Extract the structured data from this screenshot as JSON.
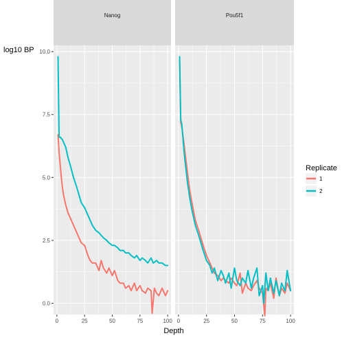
{
  "chart_data": {
    "type": "line",
    "panels": [
      "Nanog",
      "Pou5f1"
    ],
    "xlabel": "Depth",
    "ylabel": "log10 BP",
    "xlim": [
      -3,
      103
    ],
    "ylim": [
      -0.45,
      10.25
    ],
    "x_ticks": [
      0,
      25,
      50,
      75,
      100
    ],
    "x_tick_labels": [
      "0",
      "25",
      "50",
      "75",
      "100"
    ],
    "y_ticks": [
      0,
      2.5,
      5,
      7.5,
      10
    ],
    "y_tick_labels": [
      "0.0",
      "2.5",
      "5.0",
      "7.5",
      "10.0"
    ],
    "legend": {
      "title": "Replicate",
      "position": "right",
      "entries": [
        "1",
        "2"
      ]
    },
    "colors": {
      "1": "#f8766d",
      "2": "#00bfc4",
      "panel_bg": "#ebebeb",
      "strip_bg": "#d9d9d9"
    },
    "grid": true,
    "series": {
      "Nanog": {
        "1": {
          "x": [
            1,
            2,
            3,
            4,
            5,
            6,
            8,
            10,
            12,
            15,
            18,
            20,
            22,
            25,
            28,
            30,
            32,
            35,
            38,
            40,
            42,
            45,
            47,
            50,
            52,
            55,
            57,
            60,
            62,
            65,
            67,
            70,
            72,
            75,
            77,
            80,
            82,
            85,
            86,
            88,
            90,
            92,
            95,
            98,
            100
          ],
          "y": [
            6.7,
            6.0,
            5.5,
            5.0,
            4.6,
            4.3,
            3.9,
            3.6,
            3.4,
            3.1,
            2.8,
            2.6,
            2.4,
            2.3,
            1.9,
            1.7,
            1.6,
            1.6,
            1.3,
            1.7,
            1.4,
            1.2,
            1.4,
            1.1,
            1.3,
            0.9,
            0.8,
            0.8,
            0.6,
            0.7,
            0.5,
            0.8,
            0.5,
            0.7,
            0.5,
            0.4,
            0.6,
            0.5,
            -0.4,
            0.6,
            0.4,
            0.3,
            0.6,
            0.3,
            0.5
          ]
        },
        "2": {
          "x": [
            1,
            2,
            3,
            5,
            8,
            10,
            12,
            15,
            18,
            20,
            22,
            25,
            28,
            30,
            32,
            35,
            38,
            40,
            42,
            45,
            47,
            50,
            52,
            55,
            57,
            60,
            62,
            65,
            67,
            70,
            72,
            75,
            77,
            80,
            82,
            85,
            87,
            90,
            92,
            95,
            98,
            100
          ],
          "y": [
            9.8,
            6.6,
            6.6,
            6.5,
            6.2,
            5.8,
            5.5,
            5.0,
            4.6,
            4.3,
            4.0,
            3.8,
            3.5,
            3.3,
            3.1,
            2.9,
            2.8,
            2.7,
            2.6,
            2.5,
            2.4,
            2.3,
            2.3,
            2.2,
            2.1,
            2.1,
            2.0,
            2.0,
            1.9,
            1.8,
            1.9,
            1.7,
            1.8,
            1.7,
            1.6,
            1.8,
            1.6,
            1.7,
            1.6,
            1.6,
            1.5,
            1.5
          ]
        }
      },
      "Pou5f1": {
        "1": {
          "x": [
            1,
            2,
            3,
            5,
            8,
            10,
            12,
            15,
            18,
            20,
            22,
            25,
            28,
            30,
            32,
            35,
            38,
            40,
            42,
            45,
            47,
            50,
            52,
            55,
            57,
            60,
            62,
            65,
            67,
            70,
            72,
            75,
            77,
            78,
            80,
            82,
            85,
            87,
            90,
            92,
            95,
            97,
            100
          ],
          "y": [
            9.7,
            7.2,
            7.0,
            6.3,
            5.2,
            4.5,
            4.0,
            3.3,
            2.9,
            2.6,
            2.3,
            1.9,
            1.6,
            1.4,
            1.2,
            1.1,
            0.9,
            1.0,
            0.9,
            0.8,
            1.0,
            0.8,
            0.7,
            1.2,
            0.4,
            0.8,
            0.6,
            0.5,
            0.7,
            0.9,
            0.6,
            0.4,
            -0.5,
            0.6,
            0.5,
            0.8,
            0.2,
            1.0,
            0.3,
            0.6,
            0.4,
            0.8,
            0.5
          ]
        },
        "2": {
          "x": [
            1,
            2,
            3,
            5,
            8,
            10,
            12,
            15,
            18,
            20,
            22,
            25,
            28,
            30,
            32,
            35,
            38,
            40,
            42,
            45,
            47,
            50,
            52,
            55,
            57,
            60,
            62,
            65,
            67,
            70,
            72,
            75,
            76,
            78,
            80,
            82,
            85,
            87,
            90,
            92,
            95,
            97,
            100
          ],
          "y": [
            9.8,
            7.3,
            7.1,
            6.0,
            4.8,
            4.2,
            3.7,
            3.1,
            2.7,
            2.4,
            2.1,
            1.7,
            1.5,
            1.2,
            1.4,
            0.9,
            1.3,
            1.1,
            0.8,
            1.2,
            0.6,
            1.4,
            0.9,
            0.7,
            1.0,
            0.8,
            1.3,
            0.6,
            1.0,
            1.4,
            0.3,
            0.7,
            0.0,
            1.2,
            0.5,
            1.0,
            0.4,
            0.9,
            0.3,
            0.8,
            0.5,
            1.3,
            0.5
          ]
        }
      }
    }
  }
}
